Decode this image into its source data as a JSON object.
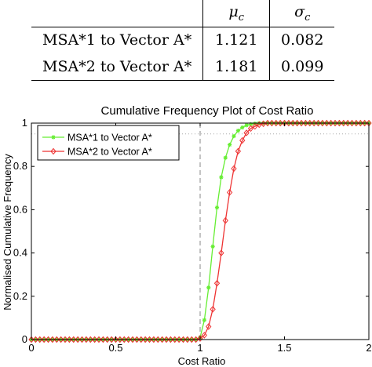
{
  "table": {
    "header_mu": "μ",
    "header_mu_sub": "c",
    "header_sigma": "σ",
    "header_sigma_sub": "c",
    "rows": [
      {
        "label": "MSA*1 to Vector A*",
        "mu": "1.121",
        "sigma": "0.082"
      },
      {
        "label": "MSA*2 to Vector A*",
        "mu": "1.181",
        "sigma": "0.099"
      }
    ]
  },
  "chart_data": {
    "type": "line",
    "title": "Cumulative Frequency Plot of Cost Ratio",
    "xlabel": "Cost Ratio",
    "ylabel": "Normalised Cumulative Frequency",
    "xlim": [
      0,
      2
    ],
    "ylim": [
      0,
      1
    ],
    "xticks": [
      0,
      0.5,
      1,
      1.5,
      2
    ],
    "xtick_labels": [
      "0",
      "0.5",
      "1",
      "1.5",
      "2"
    ],
    "yticks": [
      0,
      0.2,
      0.4,
      0.6,
      0.8,
      1
    ],
    "ytick_labels": [
      "0",
      "0.2",
      "0.4",
      "0.6",
      "0.8",
      "1"
    ],
    "grid": false,
    "legend_position": "top-left",
    "reference_lines": {
      "vertical_x": 1.0,
      "horizontal_y": 0.95
    },
    "series": [
      {
        "name": "MSA*1 to Vector A*",
        "color": "#66ee33",
        "marker": "asterisk",
        "x": [
          0,
          0.025,
          0.05,
          0.075,
          0.1,
          0.125,
          0.15,
          0.175,
          0.2,
          0.225,
          0.25,
          0.275,
          0.3,
          0.325,
          0.35,
          0.375,
          0.4,
          0.425,
          0.45,
          0.475,
          0.5,
          0.525,
          0.55,
          0.575,
          0.6,
          0.625,
          0.65,
          0.675,
          0.7,
          0.725,
          0.75,
          0.775,
          0.8,
          0.825,
          0.85,
          0.875,
          0.9,
          0.925,
          0.95,
          0.975,
          1.0,
          1.025,
          1.05,
          1.075,
          1.1,
          1.125,
          1.15,
          1.175,
          1.2,
          1.225,
          1.25,
          1.275,
          1.3,
          1.325,
          1.35,
          1.375,
          1.4,
          1.425,
          1.45,
          1.475,
          1.5,
          1.525,
          1.55,
          1.575,
          1.6,
          1.625,
          1.65,
          1.675,
          1.7,
          1.725,
          1.75,
          1.775,
          1.8,
          1.825,
          1.85,
          1.875,
          1.9,
          1.925,
          1.95,
          1.975,
          2.0
        ],
        "y": [
          0,
          0,
          0,
          0,
          0,
          0,
          0,
          0,
          0,
          0,
          0,
          0,
          0,
          0,
          0,
          0,
          0,
          0,
          0,
          0,
          0,
          0,
          0,
          0,
          0,
          0,
          0,
          0,
          0,
          0,
          0,
          0,
          0,
          0,
          0,
          0,
          0,
          0,
          0,
          0,
          0.01,
          0.09,
          0.24,
          0.43,
          0.61,
          0.75,
          0.84,
          0.9,
          0.94,
          0.965,
          0.98,
          0.99,
          0.995,
          0.998,
          1,
          1,
          1,
          1,
          1,
          1,
          1,
          1,
          1,
          1,
          1,
          1,
          1,
          1,
          1,
          1,
          1,
          1,
          1,
          1,
          1,
          1,
          1,
          1,
          1,
          1,
          1
        ]
      },
      {
        "name": "MSA*2 to Vector A*",
        "color": "#ee3333",
        "marker": "diamond",
        "x": [
          0,
          0.025,
          0.05,
          0.075,
          0.1,
          0.125,
          0.15,
          0.175,
          0.2,
          0.225,
          0.25,
          0.275,
          0.3,
          0.325,
          0.35,
          0.375,
          0.4,
          0.425,
          0.45,
          0.475,
          0.5,
          0.525,
          0.55,
          0.575,
          0.6,
          0.625,
          0.65,
          0.675,
          0.7,
          0.725,
          0.75,
          0.775,
          0.8,
          0.825,
          0.85,
          0.875,
          0.9,
          0.925,
          0.95,
          0.975,
          1.0,
          1.025,
          1.05,
          1.075,
          1.1,
          1.125,
          1.15,
          1.175,
          1.2,
          1.225,
          1.25,
          1.275,
          1.3,
          1.325,
          1.35,
          1.375,
          1.4,
          1.425,
          1.45,
          1.475,
          1.5,
          1.525,
          1.55,
          1.575,
          1.6,
          1.625,
          1.65,
          1.675,
          1.7,
          1.725,
          1.75,
          1.775,
          1.8,
          1.825,
          1.85,
          1.875,
          1.9,
          1.925,
          1.95,
          1.975,
          2.0
        ],
        "y": [
          0,
          0,
          0,
          0,
          0,
          0,
          0,
          0,
          0,
          0,
          0,
          0,
          0,
          0,
          0,
          0,
          0,
          0,
          0,
          0,
          0,
          0,
          0,
          0,
          0,
          0,
          0,
          0,
          0,
          0,
          0,
          0,
          0,
          0,
          0,
          0,
          0,
          0,
          0,
          0,
          0.005,
          0.02,
          0.06,
          0.14,
          0.26,
          0.4,
          0.55,
          0.68,
          0.79,
          0.87,
          0.92,
          0.955,
          0.975,
          0.985,
          0.993,
          0.997,
          1,
          1,
          1,
          1,
          1,
          1,
          1,
          1,
          1,
          1,
          1,
          1,
          1,
          1,
          1,
          1,
          1,
          1,
          1,
          1,
          1,
          1,
          1,
          1,
          1
        ]
      }
    ]
  },
  "colors": {
    "axis": "#000000",
    "reference_line": "#888888"
  }
}
